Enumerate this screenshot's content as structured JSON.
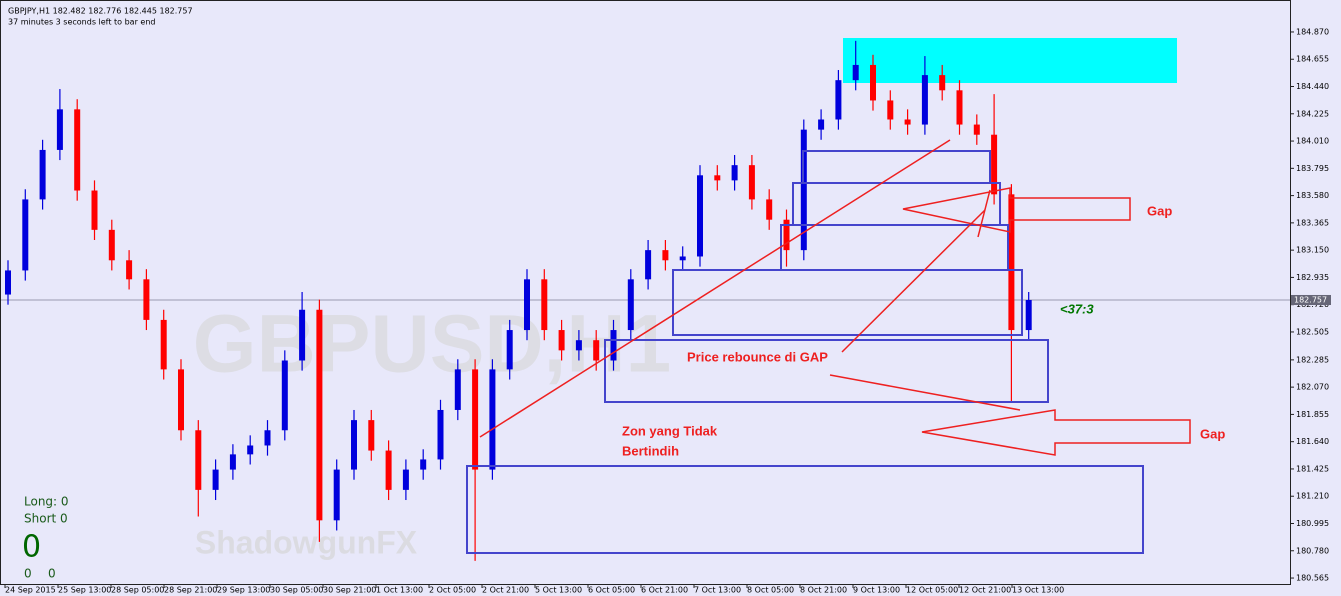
{
  "header": {
    "symbol": "GBPJPY,H1  182.482 182.776 182.445 182.757",
    "timer": "37 minutes 3 seconds left to bar end"
  },
  "info": {
    "long": "Long: 0",
    "short": "Short 0",
    "count": "0",
    "bottom": [
      "0",
      "0"
    ]
  },
  "watermarks": [
    "GBPUSD,H1",
    "ShadowgunFX"
  ],
  "annotations": {
    "gap_top": "Gap",
    "gap_bottom": "Gap",
    "rebounce": "Price rebounce di GAP",
    "zone": [
      "Zon yang Tidak",
      "Bertindih"
    ],
    "countdown": "<37:3"
  },
  "chart_data": {
    "type": "candlestick",
    "up_color": "#0000dd",
    "down_color": "#ff0000",
    "bid": 182.757,
    "ylim": [
      180.518,
      185.122
    ],
    "yticks": [
      {
        "value": 184.87,
        "label": "184.870"
      },
      184.655,
      {
        "value": 184.44,
        "label": "184.440"
      },
      184.225,
      {
        "value": 184.01,
        "label": "184.010"
      },
      183.795,
      {
        "value": 183.58,
        "label": "183.580"
      },
      183.365,
      {
        "value": 183.15,
        "label": "183.150"
      },
      182.935,
      {
        "value": 182.72,
        "label": "182.720"
      },
      182.505,
      182.285,
      {
        "value": 182.07,
        "label": "182.070"
      },
      181.855,
      {
        "value": 181.64,
        "label": "181.640"
      },
      181.425,
      {
        "value": 181.21,
        "label": "181.210"
      },
      180.995,
      {
        "value": 180.78,
        "label": "180.780"
      },
      180.565
    ],
    "xlabels": [
      "24 Sep 2015",
      "25 Sep 13:00",
      "28 Sep 05:00",
      "28 Sep 21:00",
      "29 Sep 13:00",
      "30 Sep 05:00",
      "30 Sep 21:00",
      "1 Oct 13:00",
      "2 Oct 05:00",
      "2 Oct 21:00",
      "5 Oct 13:00",
      "6 Oct 05:00",
      "6 Oct 21:00",
      "7 Oct 13:00",
      "8 Oct 05:00",
      "8 Oct 21:00",
      "9 Oct 13:00",
      "12 Oct 05:00",
      "12 Oct 21:00",
      "13 Oct 13:00"
    ],
    "candles": [
      [
        182.8,
        183.07,
        182.72,
        182.99
      ],
      [
        182.99,
        183.63,
        182.91,
        183.55
      ],
      [
        183.55,
        184.02,
        183.47,
        183.94
      ],
      [
        183.94,
        184.42,
        183.86,
        184.26
      ],
      [
        184.26,
        184.34,
        183.54,
        183.62
      ],
      [
        183.62,
        183.7,
        183.23,
        183.31
      ],
      [
        183.31,
        183.39,
        182.99,
        183.07
      ],
      [
        183.07,
        183.15,
        182.84,
        182.92
      ],
      [
        182.92,
        183.0,
        182.52,
        182.6
      ],
      [
        182.6,
        182.68,
        182.13,
        182.21
      ],
      [
        182.21,
        182.29,
        181.65,
        181.73
      ],
      [
        181.73,
        181.81,
        181.05,
        181.26
      ],
      [
        181.26,
        181.5,
        181.18,
        181.42
      ],
      [
        181.42,
        181.62,
        181.34,
        181.54
      ],
      [
        181.54,
        181.69,
        181.46,
        181.61
      ],
      [
        181.61,
        181.81,
        181.53,
        181.73
      ],
      [
        181.73,
        182.36,
        181.65,
        182.28
      ],
      [
        182.28,
        182.82,
        182.2,
        182.68
      ],
      [
        182.68,
        182.76,
        180.85,
        181.02
      ],
      [
        181.02,
        181.5,
        180.94,
        181.42
      ],
      [
        181.42,
        181.89,
        181.34,
        181.81
      ],
      [
        181.81,
        181.89,
        181.49,
        181.57
      ],
      [
        181.57,
        181.65,
        181.18,
        181.26
      ],
      [
        181.26,
        181.5,
        181.18,
        181.42
      ],
      [
        181.42,
        181.58,
        181.34,
        181.5
      ],
      [
        181.5,
        181.97,
        181.42,
        181.89
      ],
      [
        181.89,
        182.29,
        181.81,
        182.21
      ],
      [
        182.21,
        182.29,
        180.7,
        181.42
      ],
      [
        181.42,
        182.29,
        181.34,
        182.21
      ],
      [
        182.21,
        182.6,
        182.13,
        182.52
      ],
      [
        182.52,
        183.0,
        182.44,
        182.92
      ],
      [
        182.92,
        183.0,
        182.44,
        182.52
      ],
      [
        182.52,
        182.6,
        182.28,
        182.36
      ],
      [
        182.36,
        182.52,
        182.28,
        182.44
      ],
      [
        182.44,
        182.52,
        182.2,
        182.28
      ],
      [
        182.28,
        182.6,
        182.2,
        182.52
      ],
      [
        182.52,
        183.0,
        182.44,
        182.92
      ],
      [
        182.92,
        183.23,
        182.84,
        183.15
      ],
      [
        183.15,
        183.23,
        182.99,
        183.07
      ],
      [
        183.07,
        183.18,
        182.99,
        183.1
      ],
      [
        183.1,
        183.82,
        183.02,
        183.74
      ],
      [
        183.74,
        183.82,
        183.62,
        183.7
      ],
      [
        183.7,
        183.9,
        183.62,
        183.82
      ],
      [
        183.82,
        183.9,
        183.47,
        183.55
      ],
      [
        183.55,
        183.63,
        183.31,
        183.39
      ],
      [
        183.39,
        183.47,
        183.02,
        183.15
      ],
      [
        183.15,
        184.18,
        183.07,
        184.1
      ],
      [
        184.1,
        184.26,
        184.02,
        184.18
      ],
      [
        184.18,
        184.57,
        184.1,
        184.49
      ],
      [
        184.49,
        184.8,
        184.41,
        184.61
      ],
      [
        184.61,
        184.69,
        184.25,
        184.33
      ],
      [
        184.33,
        184.41,
        184.1,
        184.18
      ],
      [
        184.18,
        184.26,
        184.06,
        184.14
      ],
      [
        184.14,
        184.68,
        184.06,
        184.53
      ],
      [
        184.53,
        184.61,
        184.33,
        184.41
      ],
      [
        184.41,
        184.49,
        184.06,
        184.14
      ],
      [
        184.14,
        184.22,
        183.98,
        184.06
      ],
      [
        184.06,
        184.38,
        183.51,
        183.59
      ],
      [
        183.59,
        183.67,
        181.95,
        182.52
      ],
      [
        182.52,
        182.82,
        182.44,
        182.757
      ]
    ]
  }
}
